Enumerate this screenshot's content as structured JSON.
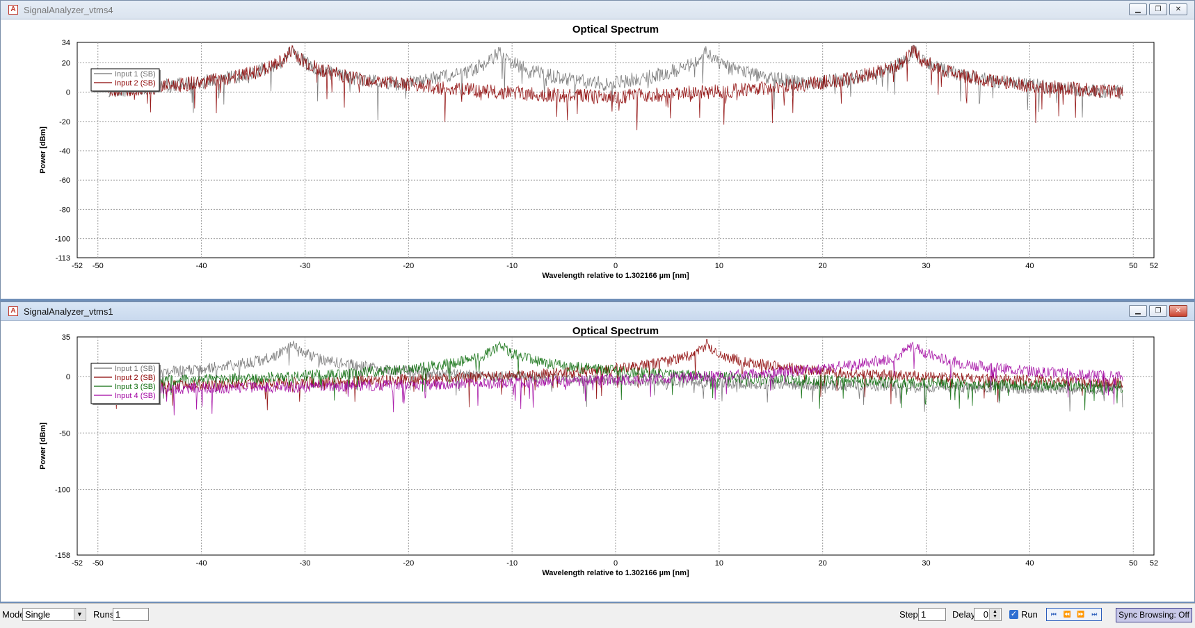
{
  "windows": [
    {
      "title": "SignalAnalyzer_vtms4",
      "active": false,
      "chart": {
        "type": "line",
        "title": "Optical Spectrum",
        "xlabel": "Wavelength relative to 1.302166 µm [nm]",
        "ylabel": "Power [dBm]",
        "xlim": [
          -52,
          52
        ],
        "ylim": [
          -113,
          34
        ],
        "xticks": [
          -52,
          -50,
          -40,
          -30,
          -20,
          -10,
          0,
          10,
          20,
          30,
          40,
          50,
          52
        ],
        "yticks": [
          34,
          20,
          0,
          -20,
          -40,
          -60,
          -80,
          -100,
          -113
        ],
        "grid": true,
        "legend_position": "top-left",
        "series": [
          {
            "name": "Input 1 (SB)",
            "color": "#707070",
            "floor": -60,
            "peaks": [
              {
                "x": -31.2,
                "y": 30
              },
              {
                "x": -11.2,
                "y": 30
              },
              {
                "x": 8.8,
                "y": 30
              },
              {
                "x": 28.8,
                "y": 30
              }
            ]
          },
          {
            "name": "Input 2 (SB)",
            "color": "#8b0000",
            "floor": -62,
            "peaks": [
              {
                "x": -31.2,
                "y": 30
              },
              {
                "x": 28.8,
                "y": 30
              }
            ]
          }
        ]
      }
    },
    {
      "title": "SignalAnalyzer_vtms1",
      "active": true,
      "chart": {
        "type": "line",
        "title": "Optical Spectrum",
        "xlabel": "Wavelength relative to 1.302166 µm [nm]",
        "ylabel": "Power [dBm]",
        "xlim": [
          -52,
          52
        ],
        "ylim": [
          -158,
          35
        ],
        "xticks": [
          -52,
          -50,
          -40,
          -30,
          -20,
          -10,
          0,
          10,
          20,
          30,
          40,
          50,
          52
        ],
        "yticks": [
          35,
          0,
          -50,
          -100,
          -158
        ],
        "grid": true,
        "legend_position": "top-left",
        "series": [
          {
            "name": "Input 1 (SB)",
            "color": "#707070",
            "floor": -65,
            "peaks": [
              {
                "x": -31.2,
                "y": 30
              }
            ]
          },
          {
            "name": "Input 2 (SB)",
            "color": "#8b0000",
            "floor": -70,
            "peaks": [
              {
                "x": 8.8,
                "y": 30
              }
            ]
          },
          {
            "name": "Input 3 (SB)",
            "color": "#0a6b0a",
            "floor": -72,
            "peaks": [
              {
                "x": -11.2,
                "y": 30
              }
            ]
          },
          {
            "name": "Input 4 (SB)",
            "color": "#a000a0",
            "floor": -70,
            "peaks": [
              {
                "x": 28.8,
                "y": 30
              }
            ]
          }
        ]
      }
    }
  ],
  "statusbar": {
    "mode_label": "Mode",
    "mode_value": "Single",
    "runs_label": "Runs",
    "runs_value": "1",
    "step_label": "Step",
    "step_value": "1",
    "delay_label": "Delay",
    "delay_value": "0",
    "run_label": "Run",
    "run_checked": true,
    "nav_icons": [
      "first-icon",
      "prev-icon",
      "next-icon",
      "last-icon"
    ],
    "sync_label": "Sync Browsing: Off"
  }
}
